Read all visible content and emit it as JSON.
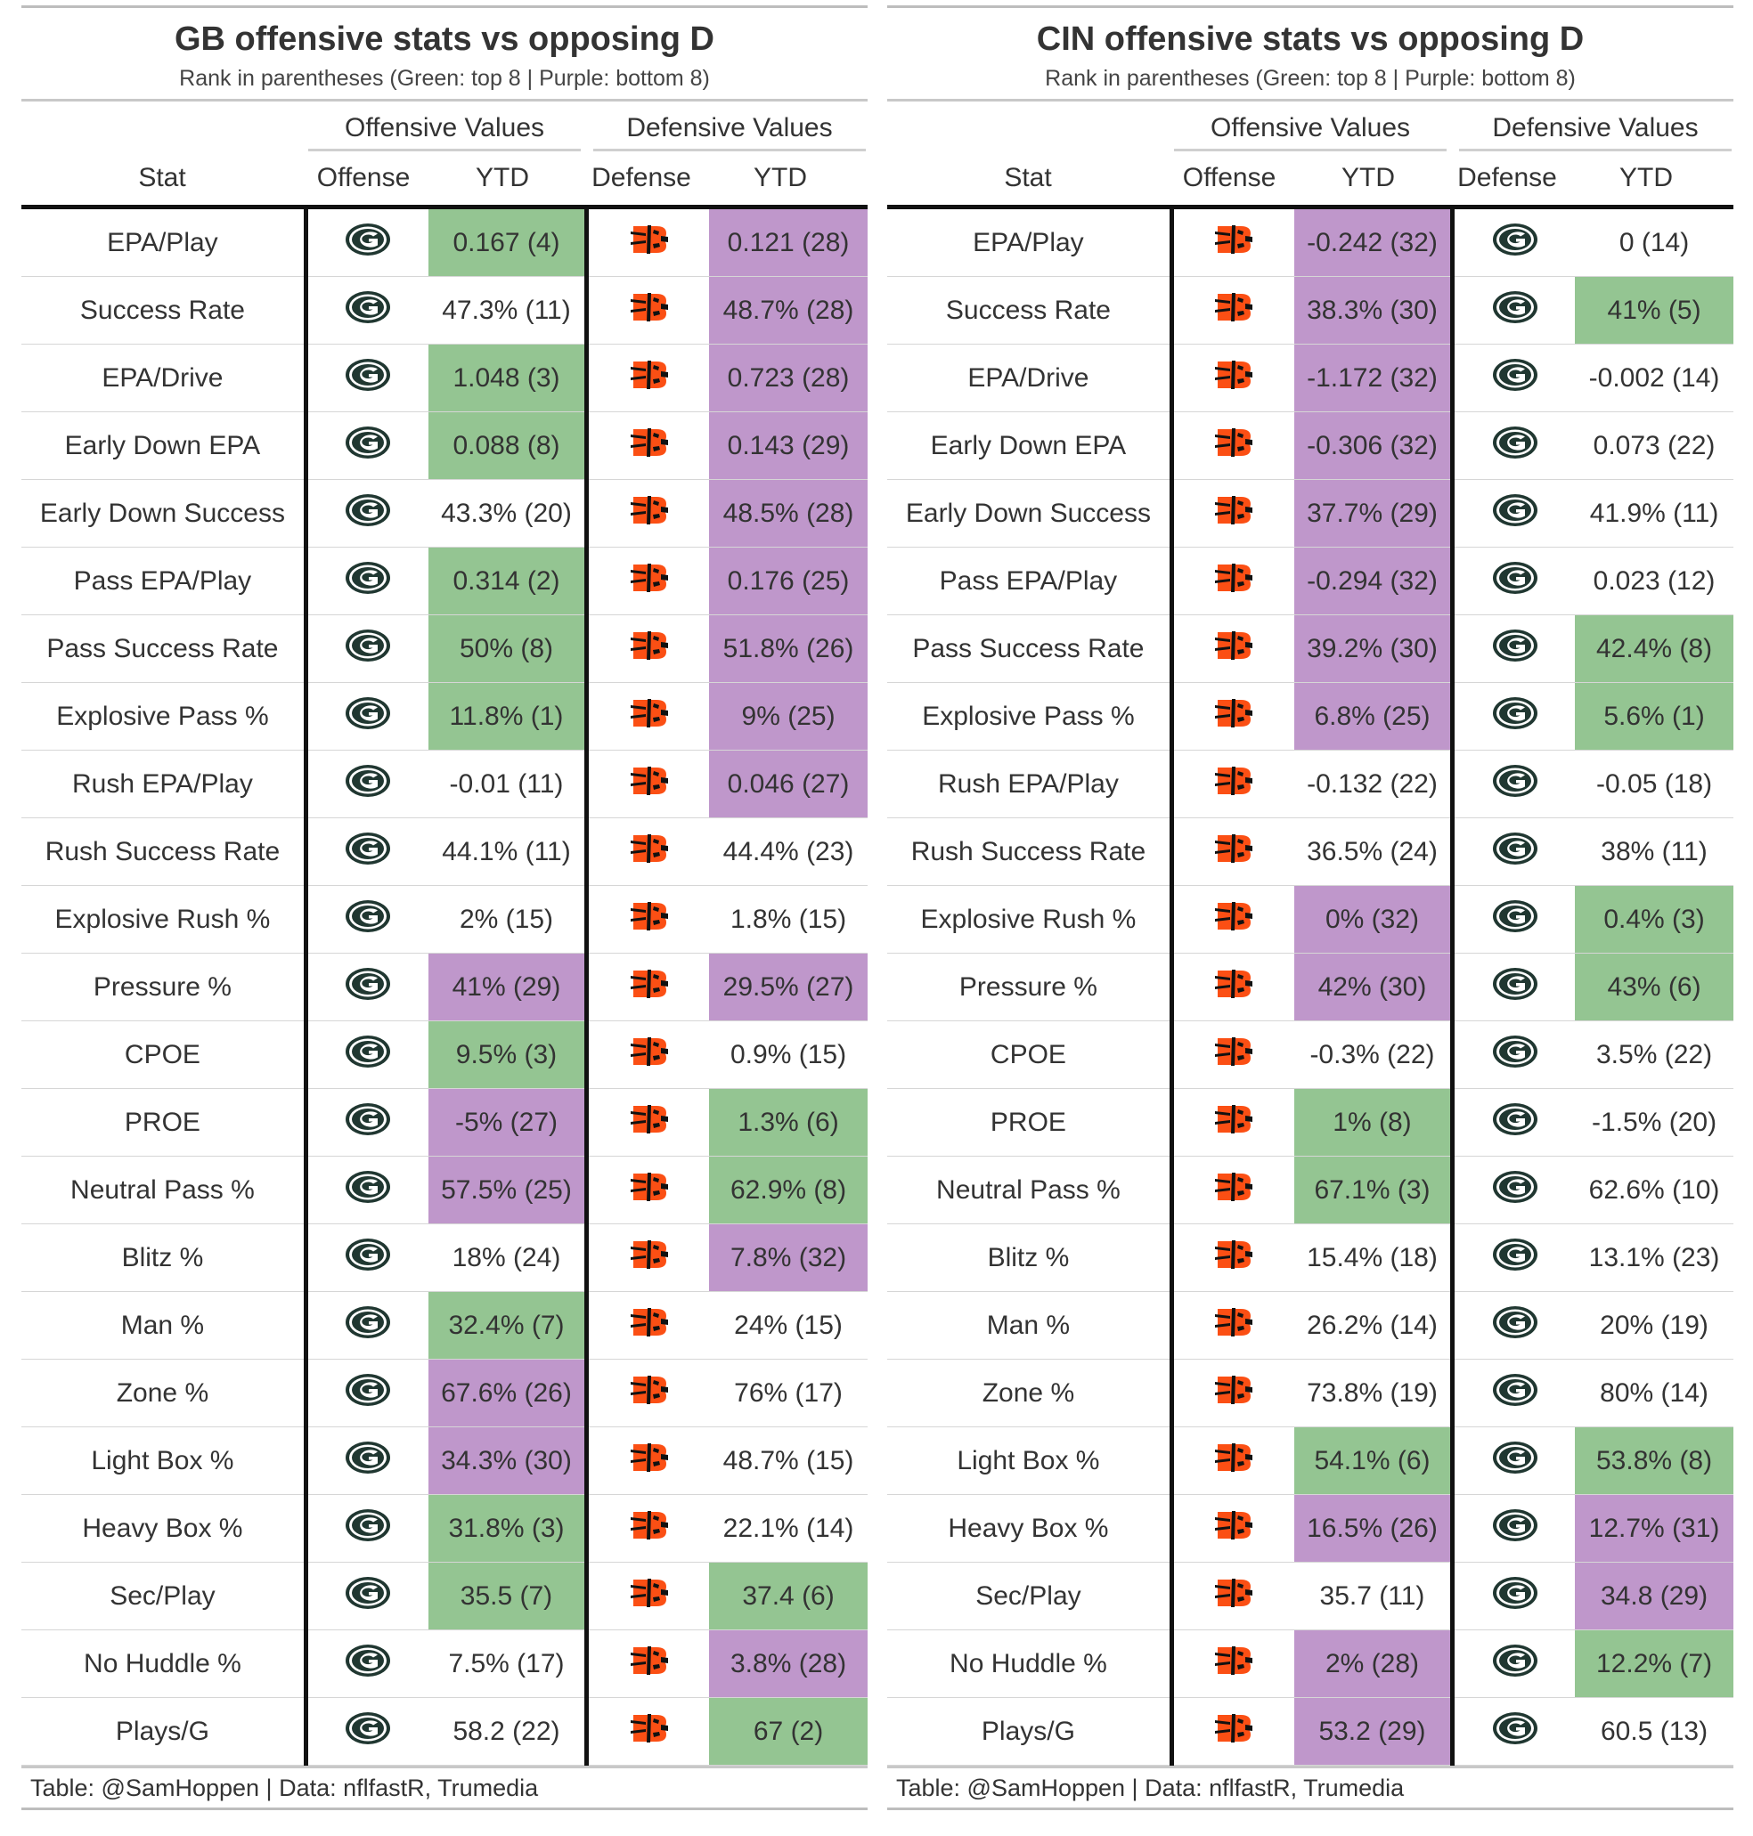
{
  "colors": {
    "green": "#94c592",
    "purple": "#bf97cb"
  },
  "panels": [
    {
      "title": "GB offensive stats vs opposing D",
      "subtitle": "Rank in parentheses (Green: top 8 | Purple: bottom 8)",
      "spanners": {
        "offense": "Offensive Values",
        "defense": "Defensive Values"
      },
      "headers": {
        "stat": "Stat",
        "offense": "Offense",
        "off_ytd": "YTD",
        "defense": "Defense",
        "def_ytd": "YTD"
      },
      "offense_logo": "packers-logo-icon",
      "defense_logo": "bengals-logo-icon",
      "rows": [
        {
          "stat": "EPA/Play",
          "off_ytd": "0.167 (4)",
          "off_hl": "green",
          "def_ytd": "0.121 (28)",
          "def_hl": "purple"
        },
        {
          "stat": "Success Rate",
          "off_ytd": "47.3% (11)",
          "off_hl": "",
          "def_ytd": "48.7% (28)",
          "def_hl": "purple"
        },
        {
          "stat": "EPA/Drive",
          "off_ytd": "1.048 (3)",
          "off_hl": "green",
          "def_ytd": "0.723 (28)",
          "def_hl": "purple"
        },
        {
          "stat": "Early Down EPA",
          "off_ytd": "0.088 (8)",
          "off_hl": "green",
          "def_ytd": "0.143 (29)",
          "def_hl": "purple"
        },
        {
          "stat": "Early Down Success",
          "off_ytd": "43.3% (20)",
          "off_hl": "",
          "def_ytd": "48.5% (28)",
          "def_hl": "purple"
        },
        {
          "stat": "Pass EPA/Play",
          "off_ytd": "0.314 (2)",
          "off_hl": "green",
          "def_ytd": "0.176 (25)",
          "def_hl": "purple"
        },
        {
          "stat": "Pass Success Rate",
          "off_ytd": "50% (8)",
          "off_hl": "green",
          "def_ytd": "51.8% (26)",
          "def_hl": "purple"
        },
        {
          "stat": "Explosive Pass %",
          "off_ytd": "11.8% (1)",
          "off_hl": "green",
          "def_ytd": "9% (25)",
          "def_hl": "purple"
        },
        {
          "stat": "Rush EPA/Play",
          "off_ytd": "-0.01 (11)",
          "off_hl": "",
          "def_ytd": "0.046 (27)",
          "def_hl": "purple"
        },
        {
          "stat": "Rush Success Rate",
          "off_ytd": "44.1% (11)",
          "off_hl": "",
          "def_ytd": "44.4% (23)",
          "def_hl": ""
        },
        {
          "stat": "Explosive Rush %",
          "off_ytd": "2% (15)",
          "off_hl": "",
          "def_ytd": "1.8% (15)",
          "def_hl": ""
        },
        {
          "stat": "Pressure %",
          "off_ytd": "41% (29)",
          "off_hl": "purple",
          "def_ytd": "29.5% (27)",
          "def_hl": "purple"
        },
        {
          "stat": "CPOE",
          "off_ytd": "9.5% (3)",
          "off_hl": "green",
          "def_ytd": "0.9% (15)",
          "def_hl": ""
        },
        {
          "stat": "PROE",
          "off_ytd": "-5% (27)",
          "off_hl": "purple",
          "def_ytd": "1.3% (6)",
          "def_hl": "green"
        },
        {
          "stat": "Neutral Pass %",
          "off_ytd": "57.5% (25)",
          "off_hl": "purple",
          "def_ytd": "62.9% (8)",
          "def_hl": "green"
        },
        {
          "stat": "Blitz %",
          "off_ytd": "18% (24)",
          "off_hl": "",
          "def_ytd": "7.8% (32)",
          "def_hl": "purple"
        },
        {
          "stat": "Man %",
          "off_ytd": "32.4% (7)",
          "off_hl": "green",
          "def_ytd": "24% (15)",
          "def_hl": ""
        },
        {
          "stat": "Zone %",
          "off_ytd": "67.6% (26)",
          "off_hl": "purple",
          "def_ytd": "76% (17)",
          "def_hl": ""
        },
        {
          "stat": "Light Box %",
          "off_ytd": "34.3% (30)",
          "off_hl": "purple",
          "def_ytd": "48.7% (15)",
          "def_hl": ""
        },
        {
          "stat": "Heavy Box %",
          "off_ytd": "31.8% (3)",
          "off_hl": "green",
          "def_ytd": "22.1% (14)",
          "def_hl": ""
        },
        {
          "stat": "Sec/Play",
          "off_ytd": "35.5 (7)",
          "off_hl": "green",
          "def_ytd": "37.4 (6)",
          "def_hl": "green"
        },
        {
          "stat": "No Huddle %",
          "off_ytd": "7.5% (17)",
          "off_hl": "",
          "def_ytd": "3.8% (28)",
          "def_hl": "purple"
        },
        {
          "stat": "Plays/G",
          "off_ytd": "58.2 (22)",
          "off_hl": "",
          "def_ytd": "67 (2)",
          "def_hl": "green"
        }
      ],
      "footer": "Table: @SamHoppen | Data: nflfastR, Trumedia"
    },
    {
      "title": "CIN offensive stats vs opposing D",
      "subtitle": "Rank in parentheses (Green: top 8 | Purple: bottom 8)",
      "spanners": {
        "offense": "Offensive Values",
        "defense": "Defensive Values"
      },
      "headers": {
        "stat": "Stat",
        "offense": "Offense",
        "off_ytd": "YTD",
        "defense": "Defense",
        "def_ytd": "YTD"
      },
      "offense_logo": "bengals-logo-icon",
      "defense_logo": "packers-logo-icon",
      "rows": [
        {
          "stat": "EPA/Play",
          "off_ytd": "-0.242 (32)",
          "off_hl": "purple",
          "def_ytd": "0 (14)",
          "def_hl": ""
        },
        {
          "stat": "Success Rate",
          "off_ytd": "38.3% (30)",
          "off_hl": "purple",
          "def_ytd": "41% (5)",
          "def_hl": "green"
        },
        {
          "stat": "EPA/Drive",
          "off_ytd": "-1.172 (32)",
          "off_hl": "purple",
          "def_ytd": "-0.002 (14)",
          "def_hl": ""
        },
        {
          "stat": "Early Down EPA",
          "off_ytd": "-0.306 (32)",
          "off_hl": "purple",
          "def_ytd": "0.073 (22)",
          "def_hl": ""
        },
        {
          "stat": "Early Down Success",
          "off_ytd": "37.7% (29)",
          "off_hl": "purple",
          "def_ytd": "41.9% (11)",
          "def_hl": ""
        },
        {
          "stat": "Pass EPA/Play",
          "off_ytd": "-0.294 (32)",
          "off_hl": "purple",
          "def_ytd": "0.023 (12)",
          "def_hl": ""
        },
        {
          "stat": "Pass Success Rate",
          "off_ytd": "39.2% (30)",
          "off_hl": "purple",
          "def_ytd": "42.4% (8)",
          "def_hl": "green"
        },
        {
          "stat": "Explosive Pass %",
          "off_ytd": "6.8% (25)",
          "off_hl": "purple",
          "def_ytd": "5.6% (1)",
          "def_hl": "green"
        },
        {
          "stat": "Rush EPA/Play",
          "off_ytd": "-0.132 (22)",
          "off_hl": "",
          "def_ytd": "-0.05 (18)",
          "def_hl": ""
        },
        {
          "stat": "Rush Success Rate",
          "off_ytd": "36.5% (24)",
          "off_hl": "",
          "def_ytd": "38% (11)",
          "def_hl": ""
        },
        {
          "stat": "Explosive Rush %",
          "off_ytd": "0% (32)",
          "off_hl": "purple",
          "def_ytd": "0.4% (3)",
          "def_hl": "green"
        },
        {
          "stat": "Pressure %",
          "off_ytd": "42% (30)",
          "off_hl": "purple",
          "def_ytd": "43% (6)",
          "def_hl": "green"
        },
        {
          "stat": "CPOE",
          "off_ytd": "-0.3% (22)",
          "off_hl": "",
          "def_ytd": "3.5% (22)",
          "def_hl": ""
        },
        {
          "stat": "PROE",
          "off_ytd": "1% (8)",
          "off_hl": "green",
          "def_ytd": "-1.5% (20)",
          "def_hl": ""
        },
        {
          "stat": "Neutral Pass %",
          "off_ytd": "67.1% (3)",
          "off_hl": "green",
          "def_ytd": "62.6% (10)",
          "def_hl": ""
        },
        {
          "stat": "Blitz %",
          "off_ytd": "15.4% (18)",
          "off_hl": "",
          "def_ytd": "13.1% (23)",
          "def_hl": ""
        },
        {
          "stat": "Man %",
          "off_ytd": "26.2% (14)",
          "off_hl": "",
          "def_ytd": "20% (19)",
          "def_hl": ""
        },
        {
          "stat": "Zone %",
          "off_ytd": "73.8% (19)",
          "off_hl": "",
          "def_ytd": "80% (14)",
          "def_hl": ""
        },
        {
          "stat": "Light Box %",
          "off_ytd": "54.1% (6)",
          "off_hl": "green",
          "def_ytd": "53.8% (8)",
          "def_hl": "green"
        },
        {
          "stat": "Heavy Box %",
          "off_ytd": "16.5% (26)",
          "off_hl": "purple",
          "def_ytd": "12.7% (31)",
          "def_hl": "purple"
        },
        {
          "stat": "Sec/Play",
          "off_ytd": "35.7 (11)",
          "off_hl": "",
          "def_ytd": "34.8 (29)",
          "def_hl": "purple"
        },
        {
          "stat": "No Huddle %",
          "off_ytd": "2% (28)",
          "off_hl": "purple",
          "def_ytd": "12.2% (7)",
          "def_hl": "green"
        },
        {
          "stat": "Plays/G",
          "off_ytd": "53.2 (29)",
          "off_hl": "purple",
          "def_ytd": "60.5 (13)",
          "def_hl": ""
        }
      ],
      "footer": "Table: @SamHoppen | Data: nflfastR, Trumedia"
    }
  ]
}
